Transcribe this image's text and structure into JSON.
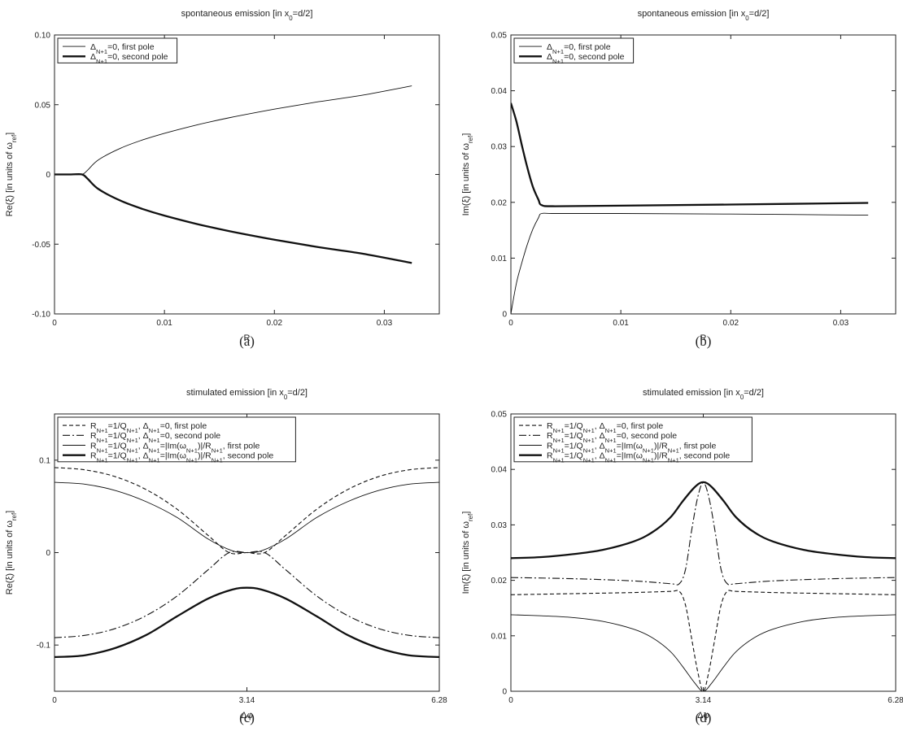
{
  "chart_data": [
    {
      "id": "a",
      "type": "line",
      "caption": "(a)",
      "title": "spontaneous emission [in x_0=d/2]",
      "xlabel": "R",
      "ylabel": "Re(ξ) [in units of ω_ref]",
      "xlim": [
        0,
        0.035
      ],
      "ylim": [
        -0.1,
        0.1
      ],
      "xticks": [
        0,
        0.01,
        0.02,
        0.03
      ],
      "xtick_labels": [
        "0",
        "0.01",
        "0.02",
        "0.03"
      ],
      "yticks": [
        -0.1,
        -0.05,
        0,
        0.05,
        0.1
      ],
      "ytick_labels": [
        "-0.10",
        "-0.05",
        "0",
        "0.05",
        "0.10"
      ],
      "grid": false,
      "legend_position": "top-left",
      "series": [
        {
          "name": "Δ_{N+1}=0, first pole",
          "style": "solid-thin",
          "x": [
            0,
            0.0015,
            0.0025,
            0.003,
            0.004,
            0.006,
            0.008,
            0.01,
            0.013,
            0.016,
            0.02,
            0.024,
            0.028,
            0.0325
          ],
          "y": [
            0,
            0,
            0,
            0.003,
            0.0105,
            0.0188,
            0.0247,
            0.0295,
            0.0356,
            0.0408,
            0.0468,
            0.0521,
            0.0568,
            0.0635
          ]
        },
        {
          "name": "Δ_{N+1}=0, second pole",
          "style": "solid-thick",
          "x": [
            0,
            0.0015,
            0.0025,
            0.003,
            0.004,
            0.006,
            0.008,
            0.01,
            0.013,
            0.016,
            0.02,
            0.024,
            0.028,
            0.0325
          ],
          "y": [
            0,
            0,
            0,
            -0.003,
            -0.0105,
            -0.0188,
            -0.0247,
            -0.0295,
            -0.0356,
            -0.0408,
            -0.0468,
            -0.0521,
            -0.0568,
            -0.0635
          ]
        }
      ]
    },
    {
      "id": "b",
      "type": "line",
      "caption": "(b)",
      "title": "spontaneous emission [in x_0=d/2]",
      "xlabel": "R",
      "ylabel": "Im(ξ) [in units of ω_ref]",
      "xlim": [
        0,
        0.035
      ],
      "ylim": [
        0,
        0.05
      ],
      "xticks": [
        0,
        0.01,
        0.02,
        0.03
      ],
      "xtick_labels": [
        "0",
        "0.01",
        "0.02",
        "0.03"
      ],
      "yticks": [
        0,
        0.01,
        0.02,
        0.03,
        0.04,
        0.05
      ],
      "ytick_labels": [
        "0",
        "0.01",
        "0.02",
        "0.03",
        "0.04",
        "0.05"
      ],
      "grid": false,
      "legend_position": "top-left",
      "series": [
        {
          "name": "Δ_{N+1}=0, first pole",
          "style": "solid-thin",
          "x": [
            0,
            0.0005,
            0.001,
            0.0015,
            0.002,
            0.0025,
            0.0028,
            0.004,
            0.01,
            0.02,
            0.0325
          ],
          "y": [
            0,
            0.0055,
            0.0092,
            0.0125,
            0.0152,
            0.0172,
            0.018,
            0.018,
            0.018,
            0.0179,
            0.0177
          ]
        },
        {
          "name": "Δ_{N+1}=0, second pole",
          "style": "solid-thick",
          "x": [
            0,
            0.0005,
            0.001,
            0.0015,
            0.002,
            0.0025,
            0.0028,
            0.004,
            0.01,
            0.02,
            0.0325
          ],
          "y": [
            0.0378,
            0.0345,
            0.0302,
            0.0262,
            0.0228,
            0.0205,
            0.0195,
            0.0193,
            0.0194,
            0.0196,
            0.0199
          ]
        }
      ]
    },
    {
      "id": "c",
      "type": "line",
      "caption": "(c)",
      "title": "stimulated emission [in x_0=d/2]",
      "xlabel": "Δφ",
      "ylabel": "Re(ξ) [in units of ω_ref]",
      "xlim": [
        0,
        6.28
      ],
      "ylim": [
        -0.15,
        0.15
      ],
      "xticks": [
        0,
        3.14,
        6.28
      ],
      "xtick_labels": [
        "0",
        "3.14",
        "6.28"
      ],
      "yticks": [
        -0.1,
        0,
        0.1
      ],
      "ytick_labels": [
        "-0.1",
        "0",
        "0.1"
      ],
      "grid": false,
      "legend_position": "top-left",
      "series": [
        {
          "name": "R_{N+1}=1/Q_{N+1}, Δ_{N+1}=0, first pole",
          "style": "dashed",
          "x": [
            0,
            0.5,
            1.0,
            1.5,
            2.0,
            2.5,
            2.85,
            3.14,
            3.43,
            3.78,
            4.28,
            4.78,
            5.28,
            5.78,
            6.28
          ],
          "y": [
            0.092,
            0.0895,
            0.082,
            0.068,
            0.047,
            0.019,
            0,
            0,
            0,
            0.019,
            0.047,
            0.068,
            0.082,
            0.0895,
            0.092
          ]
        },
        {
          "name": "R_{N+1}=1/Q_{N+1}, Δ_{N+1}=0, second pole",
          "style": "dashdot",
          "x": [
            0,
            0.5,
            1.0,
            1.5,
            2.0,
            2.5,
            2.85,
            3.14,
            3.43,
            3.78,
            4.28,
            4.78,
            5.28,
            5.78,
            6.28
          ],
          "y": [
            -0.092,
            -0.0895,
            -0.082,
            -0.068,
            -0.047,
            -0.019,
            0,
            0,
            0,
            -0.019,
            -0.047,
            -0.068,
            -0.082,
            -0.0895,
            -0.092
          ]
        },
        {
          "name": "R_{N+1}=1/Q_{N+1}, Δ_{N+1}=|Im(ω_{N+1})|/R_{N+1}, first pole",
          "style": "solid-thin",
          "x": [
            0,
            0.5,
            1.0,
            1.5,
            2.0,
            2.5,
            2.9,
            3.14,
            3.38,
            3.78,
            4.28,
            4.78,
            5.28,
            5.78,
            6.28
          ],
          "y": [
            0.076,
            0.074,
            0.067,
            0.055,
            0.038,
            0.015,
            0.002,
            0,
            0.002,
            0.015,
            0.038,
            0.055,
            0.067,
            0.074,
            0.076
          ]
        },
        {
          "name": "R_{N+1}=1/Q_{N+1}, Δ_{N+1}=|Im(ω_{N+1})|/R_{N+1}, second pole",
          "style": "solid-thick",
          "x": [
            0,
            0.5,
            1.0,
            1.5,
            2.0,
            2.5,
            2.9,
            3.14,
            3.38,
            3.78,
            4.28,
            4.78,
            5.28,
            5.78,
            6.28
          ],
          "y": [
            -0.113,
            -0.111,
            -0.103,
            -0.089,
            -0.069,
            -0.05,
            -0.04,
            -0.038,
            -0.04,
            -0.05,
            -0.069,
            -0.089,
            -0.103,
            -0.111,
            -0.113
          ]
        }
      ]
    },
    {
      "id": "d",
      "type": "line",
      "caption": "(d)",
      "title": "stimulated emission [in x_0=d/2]",
      "xlabel": "Δφ",
      "ylabel": "Im(ξ) [in units of ω_ref]",
      "xlim": [
        0,
        6.28
      ],
      "ylim": [
        0,
        0.05
      ],
      "xticks": [
        0,
        3.14,
        6.28
      ],
      "xtick_labels": [
        "0",
        "3.14",
        "6.28"
      ],
      "yticks": [
        0,
        0.01,
        0.02,
        0.03,
        0.04,
        0.05
      ],
      "ytick_labels": [
        "0",
        "0.01",
        "0.02",
        "0.03",
        "0.04",
        "0.05"
      ],
      "grid": false,
      "legend_position": "top-left",
      "series": [
        {
          "name": "R_{N+1}=1/Q_{N+1}, Δ_{N+1}=0, first pole",
          "style": "dashed",
          "x": [
            0,
            1.0,
            2.0,
            2.6,
            2.75,
            2.85,
            2.95,
            3.05,
            3.14,
            3.23,
            3.33,
            3.43,
            3.53,
            3.68,
            4.28,
            5.28,
            6.28
          ],
          "y": [
            0.0174,
            0.0176,
            0.0178,
            0.018,
            0.018,
            0.0155,
            0.0095,
            0.0035,
            0,
            0.0035,
            0.0095,
            0.0155,
            0.018,
            0.018,
            0.0178,
            0.0176,
            0.0174
          ]
        },
        {
          "name": "R_{N+1}=1/Q_{N+1}, Δ_{N+1}=0, second pole",
          "style": "dashdot",
          "x": [
            0,
            1.0,
            2.0,
            2.6,
            2.75,
            2.85,
            2.95,
            3.05,
            3.14,
            3.23,
            3.33,
            3.43,
            3.53,
            3.68,
            4.28,
            5.28,
            6.28
          ],
          "y": [
            0.0205,
            0.0203,
            0.0199,
            0.0194,
            0.0194,
            0.022,
            0.029,
            0.035,
            0.0376,
            0.035,
            0.029,
            0.022,
            0.0194,
            0.0194,
            0.0199,
            0.0203,
            0.0205
          ]
        },
        {
          "name": "R_{N+1}=1/Q_{N+1}, Δ_{N+1}=|Im(ω_{N+1})|/R_{N+1}, first pole",
          "style": "solid-thin",
          "x": [
            0,
            0.5,
            1.0,
            1.5,
            2.0,
            2.3,
            2.6,
            2.8,
            3.0,
            3.14,
            3.28,
            3.48,
            3.68,
            3.98,
            4.28,
            4.78,
            5.28,
            5.78,
            6.28
          ],
          "y": [
            0.0138,
            0.0136,
            0.0133,
            0.0126,
            0.0112,
            0.0097,
            0.0072,
            0.0045,
            0.0015,
            0,
            0.0015,
            0.0045,
            0.0072,
            0.0097,
            0.0112,
            0.0126,
            0.0133,
            0.0136,
            0.0138
          ]
        },
        {
          "name": "R_{N+1}=1/Q_{N+1}, Δ_{N+1}=|Im(ω_{N+1})|/R_{N+1}, second pole",
          "style": "solid-thick",
          "x": [
            0,
            0.5,
            1.0,
            1.5,
            2.0,
            2.3,
            2.6,
            2.8,
            3.0,
            3.14,
            3.28,
            3.48,
            3.68,
            3.98,
            4.28,
            4.78,
            5.28,
            5.78,
            6.28
          ],
          "y": [
            0.024,
            0.0242,
            0.0247,
            0.0255,
            0.027,
            0.0286,
            0.0313,
            0.0342,
            0.0368,
            0.0377,
            0.0368,
            0.0342,
            0.0313,
            0.0286,
            0.027,
            0.0255,
            0.0247,
            0.0242,
            0.024
          ]
        }
      ]
    }
  ]
}
